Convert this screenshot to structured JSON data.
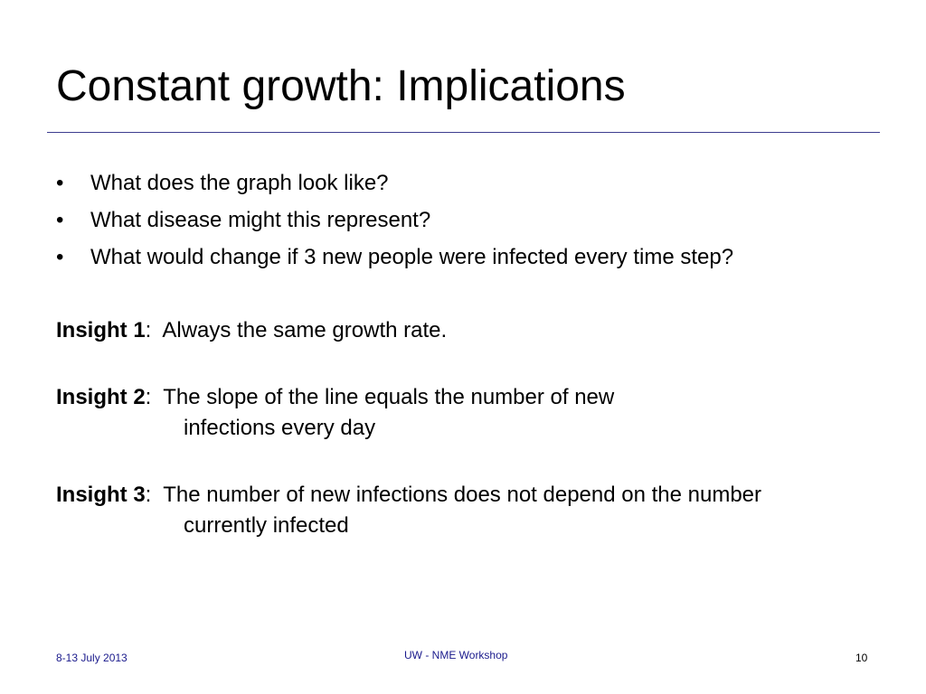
{
  "slide": {
    "title": "Constant growth: Implications",
    "bullets": [
      "What does the graph look like?",
      "What disease might this represent?",
      "What would change if 3 new people were infected every time step?"
    ],
    "bullet_marker": "•",
    "insights": [
      {
        "label": "Insight 1",
        "separator": ":",
        "line1": "Always the same growth rate.",
        "line2": ""
      },
      {
        "label": "Insight 2",
        "separator": ":",
        "line1": "The slope of the line equals the number of new",
        "line2": "infections every day"
      },
      {
        "label": "Insight 3",
        "separator": ":",
        "line1": "The number of new infections does not depend on the number",
        "line2": "currently infected"
      }
    ]
  },
  "footer": {
    "date": "8-13 July 2013",
    "center_text": "UW - NME Workshop",
    "page_number": "10"
  },
  "colors": {
    "rule": "#3d3d8f",
    "footer_text": "#1a1a8c"
  }
}
